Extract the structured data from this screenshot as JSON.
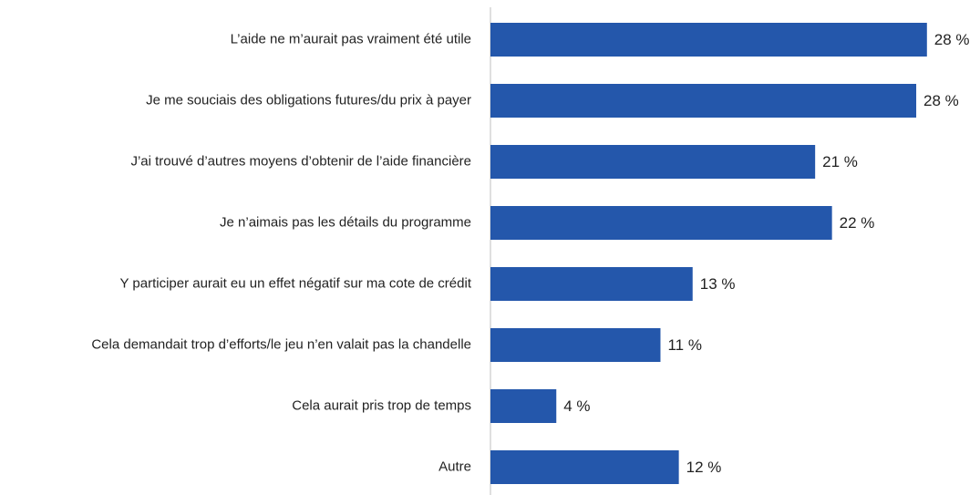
{
  "chart_data": {
    "type": "barh",
    "categories": [
      "L’aide ne m’aurait pas vraiment été utile",
      "Je me souciais des obligations futures/du prix à payer",
      "J’ai trouvé d’autres moyens d’obtenir de l’aide financière",
      "Je n’aimais pas les détails du programme",
      "Y participer aurait eu un effet négatif sur ma cote de crédit",
      "Cela demandait trop d’efforts/le jeu n’en valait pas la chandelle",
      "Cela aurait pris trop de temps",
      "Autre"
    ],
    "values": [
      28.5,
      27.8,
      21.2,
      22.3,
      13.2,
      11.1,
      4.3,
      12.3
    ],
    "value_labels": [
      "28 %",
      "28 %",
      "21 %",
      "22 %",
      "13 %",
      "11 %",
      "4 %",
      "12 %"
    ],
    "color": "#2457ab",
    "xlim": [
      0,
      30
    ]
  }
}
